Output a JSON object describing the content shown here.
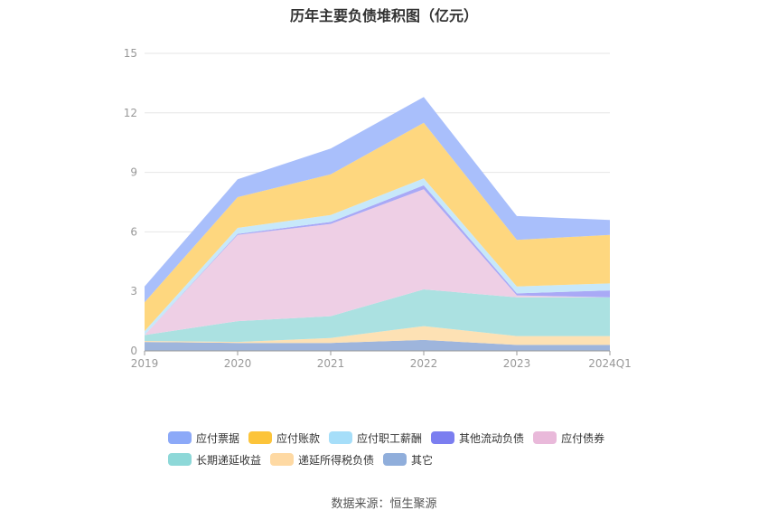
{
  "title": "历年主要负债堆积图（亿元）",
  "source": "数据来源：恒生聚源",
  "chart_data": {
    "type": "area",
    "stacked": true,
    "title": "历年主要负债堆积图（亿元）",
    "categories": [
      "2019",
      "2020",
      "2021",
      "2022",
      "2023",
      "2024Q1"
    ],
    "ylim": [
      0,
      15
    ],
    "yticks": [
      0,
      3,
      6,
      9,
      12,
      15
    ],
    "grid": true,
    "legend_position": "bottom",
    "series": [
      {
        "name": "其它",
        "color": "#9eb5dc",
        "values": [
          0.45,
          0.4,
          0.4,
          0.55,
          0.3,
          0.3
        ]
      },
      {
        "name": "递延所得税负债",
        "color": "#fde1b4",
        "values": [
          0.05,
          0.05,
          0.25,
          0.7,
          0.45,
          0.45
        ]
      },
      {
        "name": "长期递延收益",
        "color": "#abe1e1",
        "values": [
          0.3,
          1.05,
          1.1,
          1.85,
          1.95,
          1.95
        ]
      },
      {
        "name": "应付债券",
        "color": "#eecfe5",
        "values": [
          0.0,
          4.35,
          4.65,
          5.05,
          0.1,
          0.0
        ]
      },
      {
        "name": "其他流动负债",
        "color": "#a9a9f6",
        "values": [
          0.0,
          0.05,
          0.1,
          0.2,
          0.1,
          0.35
        ]
      },
      {
        "name": "应付职工薪酬",
        "color": "#c7e8fa",
        "values": [
          0.2,
          0.3,
          0.35,
          0.35,
          0.35,
          0.35
        ]
      },
      {
        "name": "应付账款",
        "color": "#fed77f",
        "values": [
          1.45,
          1.55,
          2.05,
          2.8,
          2.35,
          2.45
        ]
      },
      {
        "name": "应付票据",
        "color": "#a9bffb",
        "values": [
          0.8,
          0.9,
          1.3,
          1.3,
          1.2,
          0.75
        ]
      }
    ]
  },
  "legend": [
    {
      "label": "应付票据",
      "color": "#8ca9f8"
    },
    {
      "label": "应付账款",
      "color": "#fcc43a"
    },
    {
      "label": "应付职工薪酬",
      "color": "#a6def9"
    },
    {
      "label": "其他流动负债",
      "color": "#7b7ef0"
    },
    {
      "label": "应付债券",
      "color": "#e9b9da"
    },
    {
      "label": "长期递延收益",
      "color": "#8dd8d8"
    },
    {
      "label": "递延所得税负债",
      "color": "#fed9a3"
    },
    {
      "label": "其它",
      "color": "#90aedb"
    }
  ]
}
